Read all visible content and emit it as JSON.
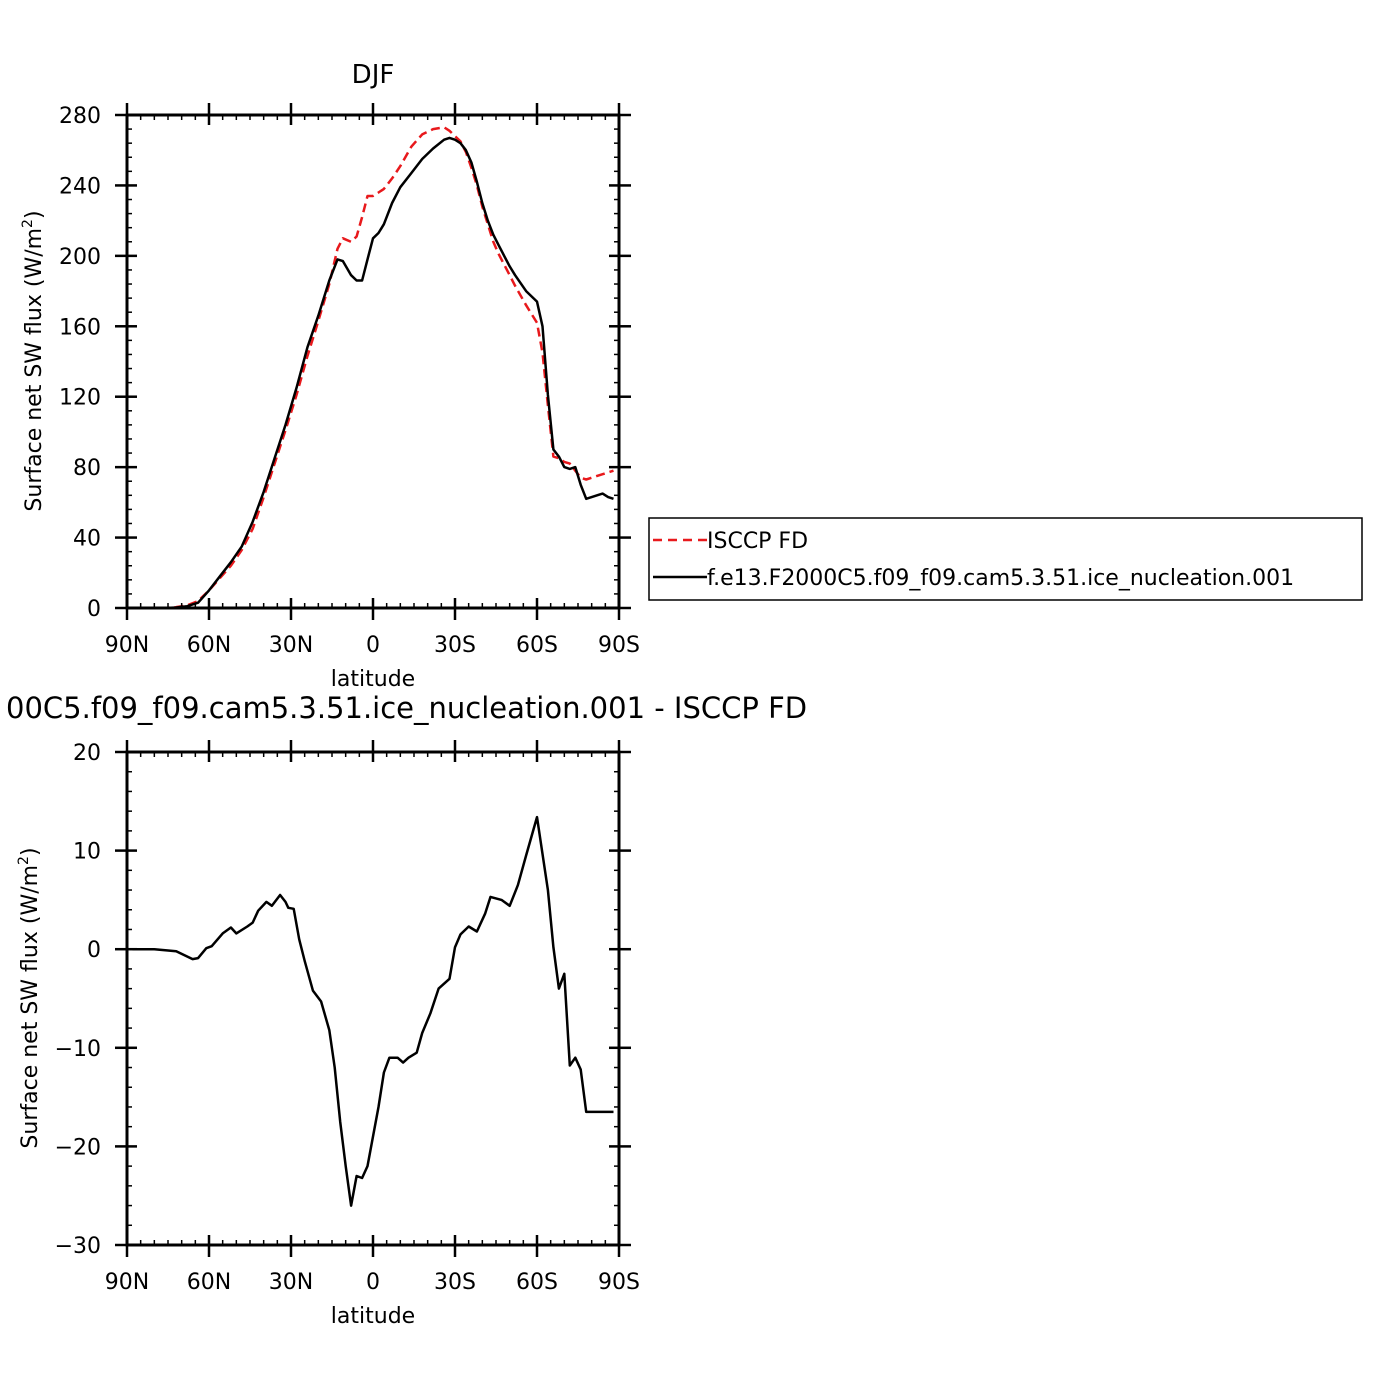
{
  "chart_data": [
    {
      "type": "line",
      "title": "DJF",
      "xlabel": "latitude",
      "ylabel": "Surface net SW flux (W/m²)",
      "ylabel_main": "Surface net SW flux (W/m",
      "ylabel_sup": "2",
      "ylabel_close": ")",
      "xlim": [
        -90,
        90
      ],
      "ylim": [
        0,
        280
      ],
      "x_ticks": [
        -90,
        -60,
        -30,
        0,
        30,
        60,
        90
      ],
      "x_tick_labels": [
        "90N",
        "60N",
        "30N",
        "0",
        "30S",
        "60S",
        "90S"
      ],
      "y_ticks": [
        0,
        40,
        80,
        120,
        160,
        200,
        240,
        280
      ],
      "y_tick_labels": [
        "0",
        "40",
        "80",
        "120",
        "160",
        "200",
        "240",
        "280"
      ],
      "legend_position": "right",
      "series": [
        {
          "name": "ISCCP FD",
          "color": "#e8191c",
          "dash": "dashed",
          "x": [
            -88,
            -84,
            -80,
            -76,
            -72,
            -68,
            -64,
            -60,
            -56,
            -52,
            -48,
            -44,
            -40,
            -36,
            -32,
            -28,
            -24,
            -20,
            -16,
            -13,
            -11,
            -8,
            -6,
            -4,
            -2,
            0,
            2,
            4,
            7,
            10,
            14,
            18,
            22,
            26,
            28,
            30,
            32,
            34,
            36,
            38,
            40,
            42,
            44,
            46,
            48,
            50,
            52,
            56,
            60,
            62,
            64,
            66,
            68,
            70,
            72,
            74,
            76,
            78,
            80,
            82,
            84,
            86,
            88
          ],
          "y": [
            0,
            0,
            0,
            0,
            0.5,
            1.5,
            4,
            10,
            17,
            24,
            33,
            45,
            63,
            82,
            101,
            121,
            143,
            163,
            184,
            204,
            210,
            208,
            211,
            222,
            234,
            234,
            236,
            238,
            244,
            251,
            262,
            269,
            272,
            273,
            271,
            268,
            265,
            259,
            250,
            240,
            228,
            218,
            208,
            201,
            195,
            189,
            183,
            172,
            162,
            145,
            115,
            86,
            85,
            83,
            82,
            78,
            74,
            73,
            74,
            75,
            76,
            77,
            78
          ]
        },
        {
          "name": "f.e13.F2000C5.f09_f09.cam5.3.51.ice_nucleation.001",
          "color": "#000000",
          "dash": "solid",
          "x": [
            -88,
            -84,
            -80,
            -76,
            -72,
            -68,
            -64,
            -60,
            -56,
            -52,
            -48,
            -44,
            -40,
            -36,
            -32,
            -28,
            -24,
            -20,
            -16,
            -13,
            -11,
            -8,
            -6,
            -4,
            -2,
            0,
            2,
            4,
            7,
            10,
            14,
            18,
            22,
            26,
            28,
            30,
            32,
            34,
            36,
            38,
            40,
            42,
            44,
            46,
            48,
            50,
            52,
            56,
            60,
            62,
            64,
            66,
            68,
            70,
            72,
            74,
            76,
            78,
            80,
            82,
            84,
            86,
            88
          ],
          "y": [
            0,
            0,
            0,
            0,
            0.3,
            1,
            3,
            10,
            18,
            26,
            35,
            49,
            66,
            85,
            104,
            125,
            148,
            166,
            186,
            198,
            197,
            189,
            186,
            186,
            198,
            210,
            213,
            218,
            230,
            239,
            247,
            255,
            261,
            266,
            267,
            266,
            264,
            260,
            253,
            242,
            230,
            220,
            212,
            206,
            200,
            194,
            189,
            180,
            174,
            160,
            121,
            90,
            86,
            80,
            79,
            80,
            70,
            62,
            63,
            64,
            65,
            63,
            62
          ]
        }
      ]
    },
    {
      "type": "line",
      "title": "00C5.f09_f09.cam5.3.51.ice_nucleation.001 - ISCCP FD",
      "xlabel": "latitude",
      "ylabel": "Surface net SW flux (W/m²)",
      "ylabel_main": "Surface net SW flux (W/m",
      "ylabel_sup": "2",
      "ylabel_close": ")",
      "xlim": [
        -90,
        90
      ],
      "ylim": [
        -30,
        20
      ],
      "x_ticks": [
        -90,
        -60,
        -30,
        0,
        30,
        60,
        90
      ],
      "x_tick_labels": [
        "90N",
        "60N",
        "30N",
        "0",
        "30S",
        "60S",
        "90S"
      ],
      "y_ticks": [
        -30,
        -20,
        -10,
        0,
        10,
        20
      ],
      "y_tick_labels": [
        "−30",
        "−20",
        "−10",
        "0",
        "10",
        "20"
      ],
      "series": [
        {
          "color": "#000000",
          "dash": "solid",
          "x": [
            -88,
            -84,
            -80,
            -76,
            -72,
            -66,
            -64,
            -61,
            -59,
            -55,
            -52,
            -50,
            -46,
            -44,
            -42,
            -39,
            -37,
            -34,
            -32,
            -31,
            -29,
            -27,
            -25,
            -22,
            -19,
            -16,
            -14,
            -12,
            -10,
            -8,
            -6,
            -4,
            -2,
            0,
            2,
            4,
            6,
            9,
            11,
            13,
            16,
            18,
            21,
            24,
            28,
            30,
            32,
            35,
            38,
            41,
            43,
            47,
            50,
            53,
            56,
            60,
            64,
            66,
            68,
            70,
            72,
            74,
            76,
            78,
            80,
            82,
            84,
            86,
            88
          ],
          "y": [
            0,
            0,
            0,
            -0.1,
            -0.2,
            -1,
            -0.9,
            0.1,
            0.3,
            1.6,
            2.2,
            1.6,
            2.3,
            2.7,
            3.9,
            4.8,
            4.4,
            5.5,
            4.8,
            4.2,
            4.1,
            1.0,
            -1.2,
            -4.2,
            -5.3,
            -8.2,
            -12.0,
            -17.5,
            -22.0,
            -26.0,
            -23.0,
            -23.2,
            -22.0,
            -19.0,
            -16.0,
            -12.5,
            -11.0,
            -11.0,
            -11.5,
            -11.0,
            -10.5,
            -8.5,
            -6.5,
            -4.0,
            -3.0,
            0.2,
            1.5,
            2.3,
            1.8,
            3.6,
            5.3,
            5.0,
            4.4,
            6.5,
            9.5,
            13.4,
            6.0,
            0.2,
            -4.0,
            -2.5,
            -11.8,
            -11.0,
            -12.2,
            -16.5,
            -16.5,
            -16.5,
            -16.5,
            -16.5,
            -16.5
          ]
        }
      ]
    }
  ]
}
